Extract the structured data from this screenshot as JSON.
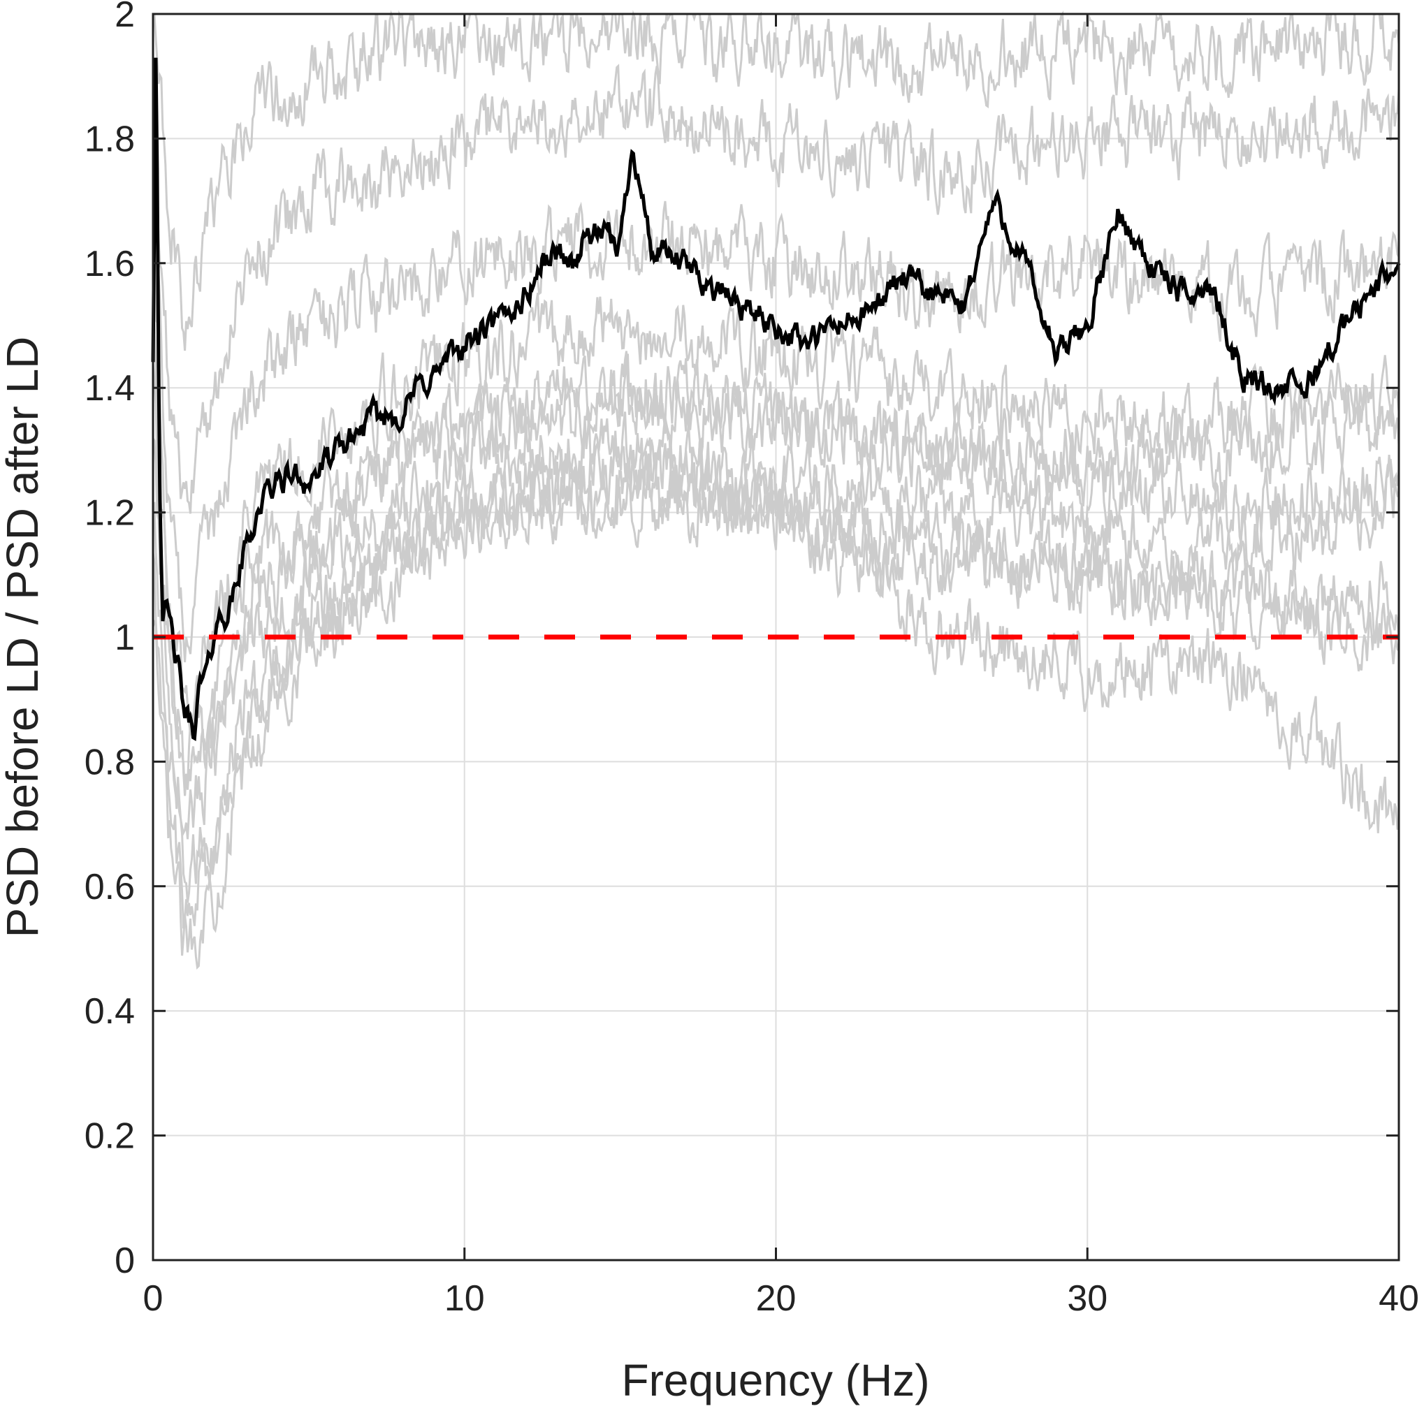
{
  "chart_data": {
    "type": "line",
    "title": "",
    "xlabel": "Frequency (Hz)",
    "ylabel": "PSD before LD / PSD after LD",
    "xlim": [
      0,
      40
    ],
    "ylim": [
      0,
      2
    ],
    "xticks": [
      0,
      10,
      20,
      30,
      40
    ],
    "yticks": [
      0,
      0.2,
      0.4,
      0.6,
      0.8,
      1,
      1.2,
      1.4,
      1.6,
      1.8,
      2
    ],
    "xtick_labels": [
      "0",
      "10",
      "20",
      "30",
      "40"
    ],
    "ytick_labels": [
      "0",
      "0.2",
      "0.4",
      "0.6",
      "0.8",
      "1",
      "1.2",
      "1.4",
      "1.6",
      "1.8",
      "2"
    ],
    "grid": true,
    "reference_line": {
      "y": 1,
      "style": "dashed",
      "color": "#ff0000"
    },
    "colors": {
      "individual": "#cccccc",
      "mean": "#000000",
      "reference": "#ff0000",
      "grid": "#dedede",
      "axes": "#222222"
    },
    "series": [
      {
        "role": "mean",
        "x": [
          0,
          0.1,
          0.2,
          0.3,
          0.5,
          0.8,
          1.0,
          1.3,
          1.5,
          1.8,
          2.0,
          2.5,
          3.0,
          3.5,
          4.0,
          4.5,
          5.0,
          6.0,
          7.0,
          8.0,
          8.5,
          9.0,
          10.0,
          11.0,
          12.0,
          12.5,
          13.0,
          13.5,
          14.0,
          15.0,
          15.4,
          16.0,
          17.0,
          18.0,
          19.0,
          20.0,
          21.0,
          22.0,
          23.0,
          24.0,
          25.0,
          26.0,
          27.0,
          28.0,
          29.0,
          30.0,
          31.0,
          32.0,
          33.0,
          34.0,
          35.0,
          36.0,
          37.0,
          38.0,
          39.0,
          40.0
        ],
        "y": [
          1.45,
          2.0,
          1.3,
          1.05,
          1.03,
          0.95,
          0.88,
          0.85,
          0.92,
          0.95,
          1.02,
          1.05,
          1.15,
          1.22,
          1.25,
          1.26,
          1.25,
          1.3,
          1.35,
          1.36,
          1.4,
          1.42,
          1.47,
          1.5,
          1.55,
          1.6,
          1.62,
          1.6,
          1.65,
          1.63,
          1.8,
          1.62,
          1.6,
          1.56,
          1.53,
          1.5,
          1.47,
          1.5,
          1.52,
          1.58,
          1.55,
          1.53,
          1.7,
          1.6,
          1.45,
          1.5,
          1.68,
          1.6,
          1.55,
          1.56,
          1.42,
          1.4,
          1.4,
          1.48,
          1.55,
          1.6
        ]
      },
      {
        "role": "individual",
        "x": [
          0,
          0.5,
          1.0,
          2.0,
          3.0,
          5.0,
          8.0,
          10.0,
          15.0,
          20.0,
          23.0,
          25.0,
          28.0,
          30.0,
          32.0,
          35.0,
          40.0
        ],
        "y": [
          1.2,
          0.8,
          0.6,
          0.7,
          0.9,
          1.0,
          1.1,
          1.2,
          1.25,
          1.2,
          1.1,
          1.02,
          0.98,
          0.95,
          0.96,
          0.95,
          0.7
        ]
      },
      {
        "role": "individual",
        "x": [
          0,
          0.5,
          1.0,
          2.0,
          3.0,
          5.0,
          8.0,
          10.0,
          15.0,
          20.0,
          25.0,
          30.0,
          35.0,
          40.0
        ],
        "y": [
          1.0,
          0.7,
          0.5,
          0.6,
          0.8,
          1.0,
          1.15,
          1.2,
          1.23,
          1.18,
          1.12,
          1.1,
          1.07,
          1.06
        ]
      },
      {
        "role": "individual",
        "x": [
          0,
          0.5,
          1.0,
          2.0,
          3.0,
          5.0,
          8.0,
          10.0,
          15.0,
          20.0,
          25.0,
          30.0,
          35.0,
          40.0
        ],
        "y": [
          1.3,
          0.9,
          0.7,
          0.8,
          1.0,
          1.1,
          1.2,
          1.28,
          1.3,
          1.22,
          1.15,
          1.1,
          1.05,
          1.0
        ]
      },
      {
        "role": "individual",
        "x": [
          0,
          0.5,
          1.0,
          2.0,
          3.0,
          5.0,
          8.0,
          10.0,
          15.0,
          20.0,
          25.0,
          30.0,
          35.0,
          40.0
        ],
        "y": [
          1.5,
          1.0,
          0.8,
          0.9,
          1.1,
          1.2,
          1.3,
          1.35,
          1.4,
          1.35,
          1.3,
          1.25,
          1.2,
          1.25
        ]
      },
      {
        "role": "individual",
        "x": [
          0,
          0.5,
          1.0,
          2.0,
          3.0,
          5.0,
          8.0,
          10.0,
          15.0,
          20.0,
          25.0,
          30.0,
          35.0,
          40.0
        ],
        "y": [
          1.6,
          1.1,
          0.9,
          1.0,
          1.2,
          1.3,
          1.4,
          1.45,
          1.5,
          1.45,
          1.4,
          1.35,
          1.35,
          1.4
        ]
      },
      {
        "role": "individual",
        "x": [
          0,
          0.5,
          1.0,
          2.0,
          3.0,
          5.0,
          8.0,
          10.0,
          15.0,
          20.0,
          25.0,
          30.0,
          35.0,
          40.0
        ],
        "y": [
          1.7,
          1.2,
          1.0,
          1.2,
          1.4,
          1.5,
          1.55,
          1.6,
          1.65,
          1.6,
          1.55,
          1.6,
          1.55,
          1.6
        ]
      },
      {
        "role": "individual",
        "x": [
          0,
          0.5,
          1.0,
          2.0,
          3.0,
          5.0,
          8.0,
          10.0,
          15.0,
          20.0,
          25.0,
          30.0,
          35.0,
          40.0
        ],
        "y": [
          1.8,
          1.4,
          1.2,
          1.4,
          1.6,
          1.7,
          1.75,
          1.8,
          1.85,
          1.8,
          1.75,
          1.8,
          1.8,
          1.85
        ]
      },
      {
        "role": "individual",
        "x": [
          0,
          0.5,
          1.0,
          2.0,
          3.0,
          5.0,
          8.0,
          10.0,
          15.0,
          20.0,
          25.0,
          30.0,
          35.0,
          40.0
        ],
        "y": [
          2.0,
          1.7,
          1.5,
          1.7,
          1.85,
          1.9,
          1.95,
          1.95,
          1.97,
          1.95,
          1.92,
          1.95,
          1.93,
          1.97
        ]
      },
      {
        "role": "individual",
        "x": [
          0,
          0.5,
          1.0,
          2.0,
          3.0,
          5.0,
          8.0,
          10.0,
          15.0,
          20.0,
          25.0,
          30.0,
          35.0,
          40.0
        ],
        "y": [
          1.1,
          0.75,
          0.55,
          0.65,
          0.85,
          1.05,
          1.15,
          1.22,
          1.28,
          1.25,
          1.2,
          1.18,
          1.15,
          1.2
        ]
      },
      {
        "role": "individual",
        "x": [
          0,
          0.5,
          1.0,
          2.0,
          3.0,
          5.0,
          8.0,
          10.0,
          15.0,
          20.0,
          25.0,
          30.0,
          35.0,
          40.0
        ],
        "y": [
          1.4,
          0.95,
          0.75,
          0.85,
          1.05,
          1.15,
          1.25,
          1.32,
          1.38,
          1.35,
          1.3,
          1.28,
          1.3,
          1.35
        ]
      }
    ]
  }
}
